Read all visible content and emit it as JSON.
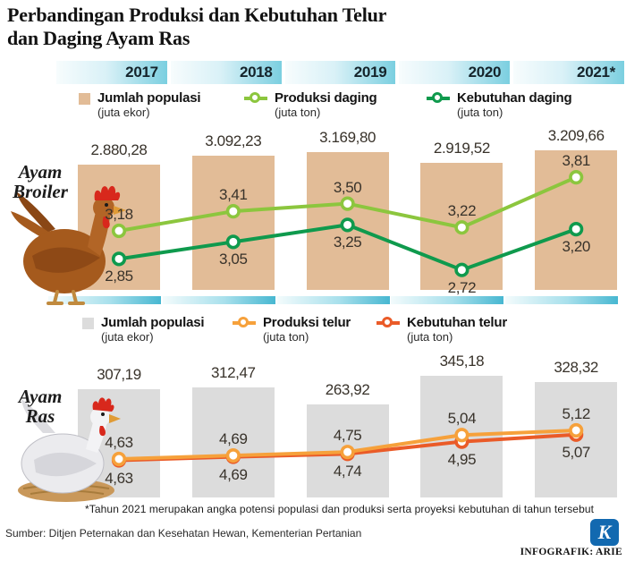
{
  "title": "Perbandingan Produksi dan Kebutuhan Telur\ndan Daging Ayam Ras",
  "years": [
    "2017",
    "2018",
    "2019",
    "2020",
    "2021*"
  ],
  "chart_data": [
    {
      "id": "broiler",
      "type": "bar+line",
      "row_label": "Ayam\nBroiler",
      "categories": [
        "2017",
        "2018",
        "2019",
        "2020",
        "2021*"
      ],
      "series": [
        {
          "name": "Jumlah populasi",
          "unit": "(juta ekor)",
          "type": "bar",
          "color": "#e2bc97",
          "values": [
            2880.28,
            3092.23,
            3169.8,
            2919.52,
            3209.66
          ],
          "labels": [
            "2.880,28",
            "3.092,23",
            "3.169,80",
            "2.919,52",
            "3.209,66"
          ],
          "label_position": "top"
        },
        {
          "name": "Produksi daging",
          "unit": "(juta ton)",
          "type": "line",
          "color": "#8cc63e",
          "values": [
            3.18,
            3.41,
            3.5,
            3.22,
            3.81
          ],
          "labels": [
            "3,18",
            "3,41",
            "3,50",
            "3,22",
            "3,81"
          ],
          "label_position": "above"
        },
        {
          "name": "Kebutuhan daging",
          "unit": "(juta ton)",
          "type": "line",
          "color": "#0f9a4d",
          "values": [
            2.85,
            3.05,
            3.25,
            2.72,
            3.2
          ],
          "labels": [
            "2,85",
            "3,05",
            "3,25",
            "2,72",
            "3,20"
          ],
          "label_position": "below"
        }
      ],
      "ylim_bar": [
        0,
        3300
      ],
      "ylim_line": [
        2.5,
        4.0
      ],
      "grid": false,
      "legend_position": "top"
    },
    {
      "id": "ayam-ras",
      "type": "bar+line",
      "row_label": "Ayam\nRas",
      "categories": [
        "2017",
        "2018",
        "2019",
        "2020",
        "2021*"
      ],
      "series": [
        {
          "name": "Jumlah populasi",
          "unit": "(juta ekor)",
          "type": "bar",
          "color": "#dcdcdc",
          "values": [
            307.19,
            312.47,
            263.92,
            345.18,
            328.32
          ],
          "labels": [
            "307,19",
            "312,47",
            "263,92",
            "345,18",
            "328,32"
          ],
          "label_position": "top"
        },
        {
          "name": "Produksi telur",
          "unit": "(juta ton)",
          "type": "line",
          "color": "#f6a13b",
          "values": [
            4.63,
            4.69,
            4.75,
            5.04,
            5.12
          ],
          "labels": [
            "4,63",
            "4,69",
            "4,75",
            "5,04",
            "5,12"
          ],
          "label_position": "above"
        },
        {
          "name": "Kebutuhan telur",
          "unit": "(juta ton)",
          "type": "line",
          "color": "#ea5b28",
          "values": [
            4.63,
            4.69,
            4.74,
            4.95,
            5.07
          ],
          "labels": [
            "4,63",
            "4,69",
            "4,74",
            "4,95",
            "5,07"
          ],
          "label_position": "below"
        }
      ],
      "ylim_bar": [
        0,
        360
      ],
      "ylim_line": [
        4.4,
        5.3
      ],
      "grid": false,
      "legend_position": "top"
    }
  ],
  "footnote": "*Tahun 2021 merupakan angka potensi populasi dan produksi serta proyeksi kebutuhan di tahun tersebut",
  "source": "Sumber: Ditjen Peternakan dan Kesehatan Hewan, Kementerian Pertanian",
  "credit": "INFOGRAFIK: ARIE",
  "logo": {
    "letter": "K",
    "color": "#1269b0"
  },
  "colors": {
    "year_band_start": "#f7fcfd",
    "year_band_end": "#7bcfe0",
    "strip_end": "#47b7d1",
    "bar_broiler": "#e2bc97",
    "bar_egg": "#dcdcdc",
    "produksi_daging": "#8cc63e",
    "kebutuhan_daging": "#0f9a4d",
    "produksi_telur": "#f6a13b",
    "kebutuhan_telur": "#ea5b28",
    "logo_blue": "#1269b0"
  }
}
